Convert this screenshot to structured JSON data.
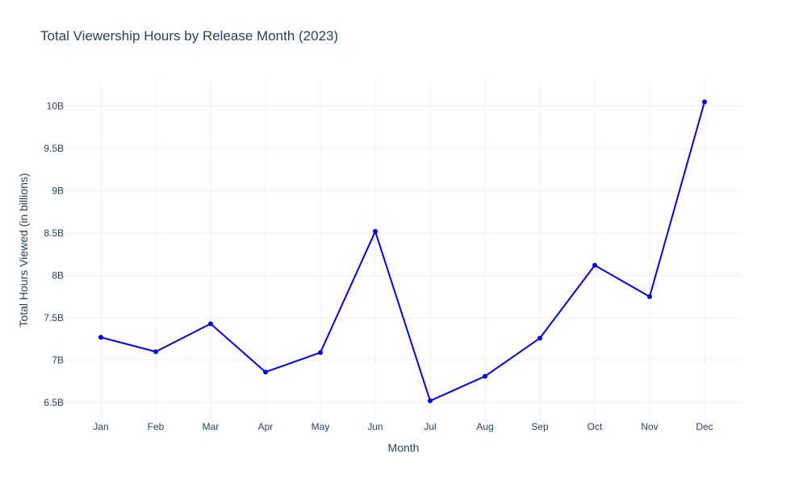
{
  "chart_data": {
    "type": "line",
    "title": "Total Viewership Hours by Release Month (2023)",
    "xlabel": "Month",
    "ylabel": "Total Hours Viewed (in billions)",
    "categories": [
      "Jan",
      "Feb",
      "Mar",
      "Apr",
      "May",
      "Jun",
      "Jul",
      "Aug",
      "Sep",
      "Oct",
      "Nov",
      "Dec"
    ],
    "series": [
      {
        "values": [
          7.27,
          7.1,
          7.43,
          6.86,
          7.09,
          8.52,
          6.52,
          6.81,
          7.26,
          8.12,
          7.75,
          10.05
        ]
      }
    ],
    "y_ticks": [
      {
        "value": 6.5,
        "label": "6.5B"
      },
      {
        "value": 7,
        "label": "7B"
      },
      {
        "value": 7.5,
        "label": "7.5B"
      },
      {
        "value": 8,
        "label": "8B"
      },
      {
        "value": 8.5,
        "label": "8.5B"
      },
      {
        "value": 9,
        "label": "9B"
      },
      {
        "value": 9.5,
        "label": "9.5B"
      },
      {
        "value": 10,
        "label": "10B"
      }
    ],
    "ylim": [
      6.3,
      10.3
    ],
    "grid": true,
    "line_color": "#0000ff",
    "marker_color": "#0000ff"
  }
}
